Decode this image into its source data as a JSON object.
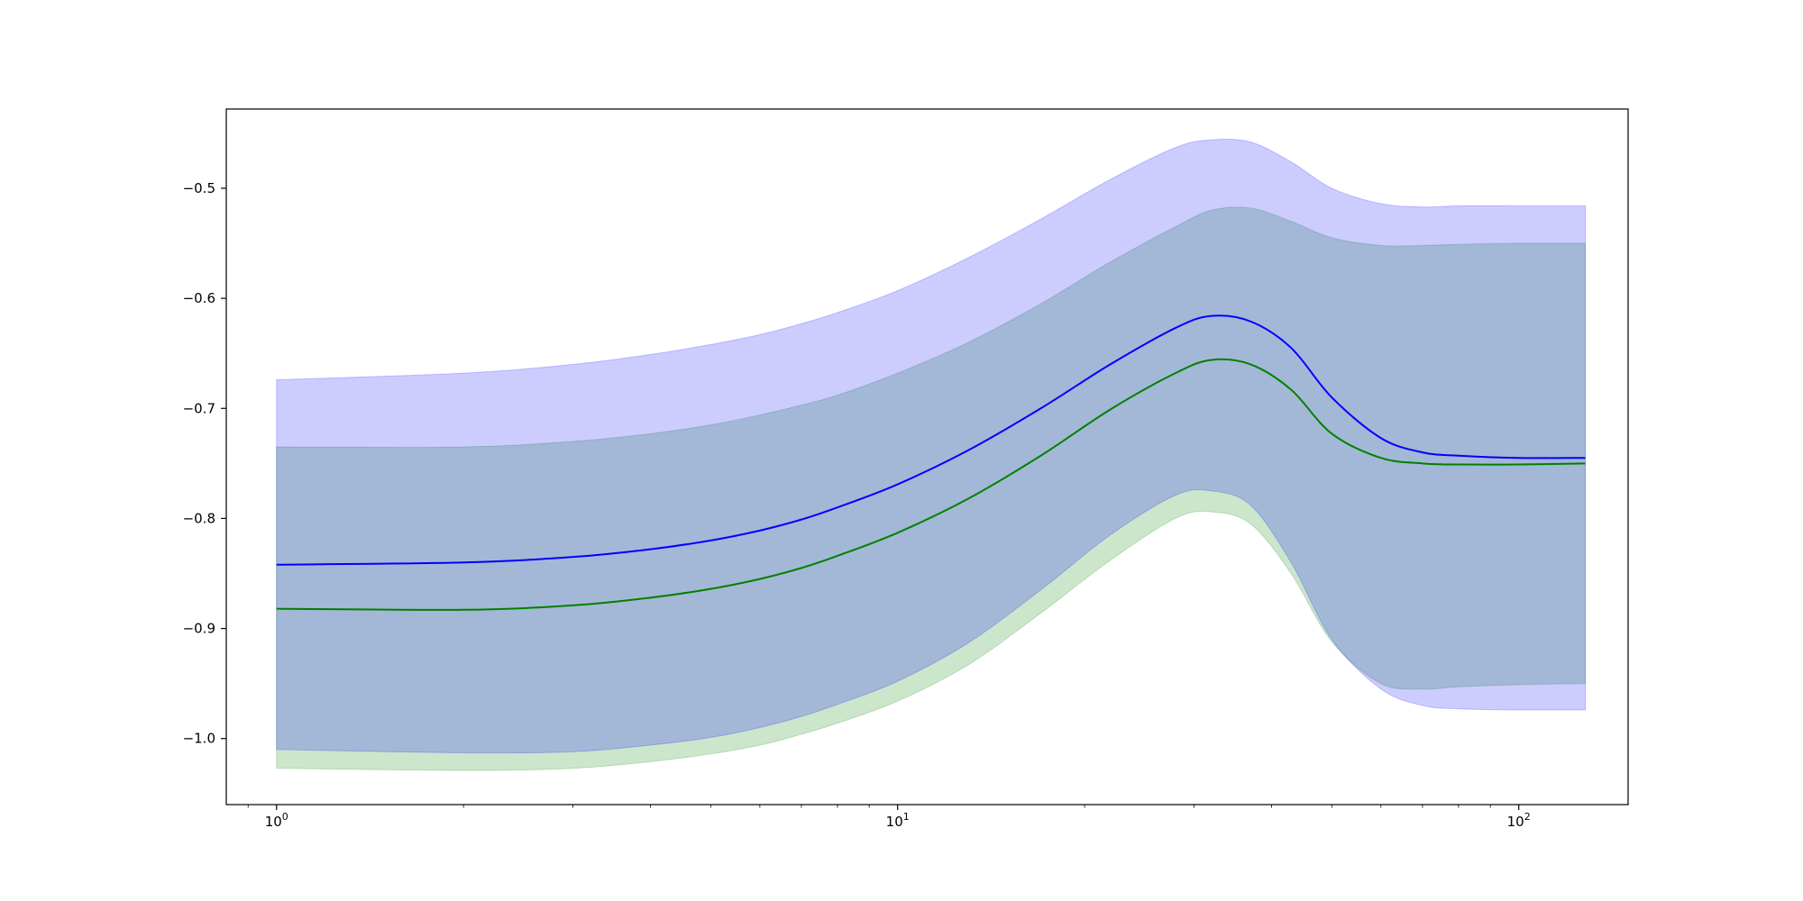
{
  "chart_data": {
    "type": "line",
    "title": "",
    "xlabel": "",
    "ylabel": "",
    "x_scale": "log",
    "xlim": [
      0.83,
      150
    ],
    "ylim": [
      -1.06,
      -0.428
    ],
    "grid": false,
    "x_ticks": [
      {
        "value": 1,
        "base": "10",
        "exp": "0"
      },
      {
        "value": 10,
        "base": "10",
        "exp": "1"
      },
      {
        "value": 100,
        "base": "10",
        "exp": "2"
      }
    ],
    "y_ticks": [
      {
        "value": -0.5,
        "label": "−0.5"
      },
      {
        "value": -0.6,
        "label": "−0.6"
      },
      {
        "value": -0.7,
        "label": "−0.7"
      },
      {
        "value": -0.8,
        "label": "−0.8"
      },
      {
        "value": -0.9,
        "label": "−0.9"
      },
      {
        "value": -1.0,
        "label": "−1.0"
      }
    ],
    "series": [
      {
        "color": "#0000ff",
        "band_color": "#0000ff",
        "band_opacity": 0.2,
        "x": [
          1,
          2,
          3,
          4,
          5,
          6,
          7,
          8,
          10,
          13,
          17,
          22,
          28,
          32,
          37,
          43,
          50,
          60,
          70,
          80,
          100,
          128
        ],
        "mean": [
          -0.842,
          -0.84,
          -0.835,
          -0.828,
          -0.82,
          -0.811,
          -0.801,
          -0.79,
          -0.769,
          -0.738,
          -0.7,
          -0.66,
          -0.627,
          -0.616,
          -0.621,
          -0.645,
          -0.69,
          -0.727,
          -0.74,
          -0.743,
          -0.745,
          -0.745
        ],
        "upper": [
          -0.674,
          -0.668,
          -0.66,
          -0.651,
          -0.642,
          -0.633,
          -0.623,
          -0.613,
          -0.593,
          -0.563,
          -0.528,
          -0.492,
          -0.463,
          -0.456,
          -0.458,
          -0.476,
          -0.5,
          -0.514,
          -0.517,
          -0.516,
          -0.516,
          -0.516
        ],
        "lower": [
          -1.01,
          -1.013,
          -1.012,
          -1.006,
          -0.999,
          -0.99,
          -0.98,
          -0.969,
          -0.948,
          -0.913,
          -0.865,
          -0.815,
          -0.779,
          -0.775,
          -0.788,
          -0.84,
          -0.91,
          -0.955,
          -0.97,
          -0.973,
          -0.974,
          -0.974
        ]
      },
      {
        "color": "#008000",
        "band_color": "#008000",
        "band_opacity": 0.2,
        "x": [
          1,
          2,
          3,
          4,
          5,
          6,
          7,
          8,
          10,
          13,
          17,
          22,
          28,
          32,
          37,
          43,
          50,
          60,
          70,
          80,
          100,
          128
        ],
        "mean": [
          -0.882,
          -0.883,
          -0.879,
          -0.872,
          -0.864,
          -0.855,
          -0.845,
          -0.834,
          -0.813,
          -0.782,
          -0.743,
          -0.701,
          -0.668,
          -0.656,
          -0.66,
          -0.683,
          -0.723,
          -0.745,
          -0.75,
          -0.751,
          -0.751,
          -0.75
        ],
        "upper": [
          -0.735,
          -0.735,
          -0.73,
          -0.723,
          -0.715,
          -0.706,
          -0.697,
          -0.688,
          -0.668,
          -0.64,
          -0.605,
          -0.567,
          -0.535,
          -0.52,
          -0.518,
          -0.53,
          -0.545,
          -0.552,
          -0.552,
          -0.551,
          -0.55,
          -0.55
        ],
        "lower": [
          -1.027,
          -1.029,
          -1.027,
          -1.021,
          -1.014,
          -1.006,
          -0.996,
          -0.986,
          -0.966,
          -0.933,
          -0.886,
          -0.838,
          -0.8,
          -0.794,
          -0.805,
          -0.85,
          -0.912,
          -0.95,
          -0.955,
          -0.953,
          -0.951,
          -0.95
        ]
      }
    ]
  }
}
